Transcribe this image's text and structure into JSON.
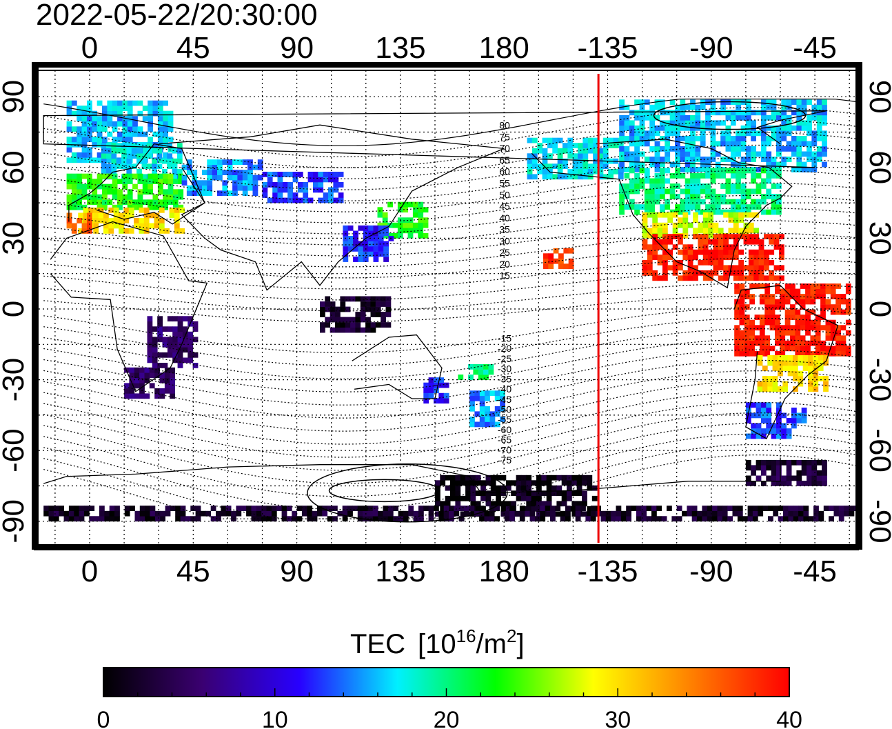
{
  "title": "2022-05-22/20:30:00",
  "x_axis": {
    "top_labels": [
      "0",
      "45",
      "90",
      "135",
      "180",
      "-135",
      "-90",
      "-45"
    ],
    "bottom_labels": [
      "0",
      "45",
      "90",
      "135",
      "180",
      "-135",
      "-90",
      "-45"
    ],
    "lon_values": [
      0,
      45,
      90,
      135,
      180,
      225,
      270,
      315
    ]
  },
  "y_axis": {
    "left_labels": [
      "90",
      "60",
      "30",
      "0",
      "-30",
      "-60",
      "-90"
    ],
    "right_labels": [
      "90",
      "60",
      "30",
      "0",
      "-30",
      "-60",
      "-90"
    ],
    "lat_values": [
      90,
      60,
      30,
      0,
      -30,
      -60,
      -90
    ]
  },
  "contour_labels": {
    "north": [
      "80",
      "75",
      "70",
      "65",
      "60",
      "55",
      "50",
      "45",
      "40",
      "35",
      "30",
      "25",
      "20",
      "15"
    ],
    "south": [
      "-15",
      "-20",
      "-25",
      "-30",
      "-35",
      "-40",
      "-45",
      "-50",
      "-55",
      "-60",
      "-65",
      "-70",
      "-75"
    ],
    "north_lat": [
      80,
      75,
      70,
      65,
      60,
      55,
      50,
      45,
      40,
      35,
      30,
      25,
      20,
      15
    ],
    "south_lat": [
      -15,
      -20,
      -25,
      -30,
      -35,
      -40,
      -45,
      -50,
      -55,
      -60,
      -65,
      -70,
      -75
    ]
  },
  "terminator": {
    "longitude": 221,
    "color": "#ee0000"
  },
  "colorbar": {
    "title": "TEC",
    "unit_open": "[10",
    "unit_exp": "16",
    "unit_mid": "/m",
    "unit_exp2": "2",
    "unit_close": "]",
    "tick_labels": [
      "0",
      "10",
      "20",
      "30",
      "40"
    ],
    "tick_values": [
      0,
      10,
      20,
      30,
      40
    ],
    "range": [
      0,
      40
    ],
    "stops": [
      "#000000",
      "#3a0070",
      "#2800ff",
      "#00f0ff",
      "#00ff00",
      "#ffff00",
      "#ff8000",
      "#ff0000"
    ]
  },
  "tec_regions": [
    {
      "name": "arctic-europe",
      "lon": [
        -10,
        35
      ],
      "lat": [
        62,
        88
      ],
      "tec": 16
    },
    {
      "name": "scandinavia",
      "lon": [
        5,
        40
      ],
      "lat": [
        55,
        70
      ],
      "tec": 17
    },
    {
      "name": "central-europe",
      "lon": [
        -10,
        40
      ],
      "lat": [
        42,
        56
      ],
      "tec": 23
    },
    {
      "name": "mediterranean",
      "lon": [
        -5,
        40
      ],
      "lat": [
        32,
        42
      ],
      "tec": 30
    },
    {
      "name": "iberia",
      "lon": [
        -10,
        0
      ],
      "lat": [
        32,
        40
      ],
      "tec": 36
    },
    {
      "name": "russia",
      "lon": [
        40,
        75
      ],
      "lat": [
        48,
        62
      ],
      "tec": 15
    },
    {
      "name": "siberia",
      "lon": [
        75,
        110
      ],
      "lat": [
        45,
        58
      ],
      "tec": 13
    },
    {
      "name": "japan",
      "lon": [
        125,
        145
      ],
      "lat": [
        30,
        45
      ],
      "tec": 23
    },
    {
      "name": "east-china",
      "lon": [
        110,
        130
      ],
      "lat": [
        20,
        35
      ],
      "tec": 12
    },
    {
      "name": "se-asia",
      "lon": [
        100,
        130
      ],
      "lat": [
        -10,
        5
      ],
      "tec": 2
    },
    {
      "name": "south-africa",
      "lon": [
        15,
        35
      ],
      "lat": [
        -38,
        -25
      ],
      "tec": 5
    },
    {
      "name": "east-africa",
      "lon": [
        25,
        45
      ],
      "lat": [
        -25,
        -5
      ],
      "tec": 5
    },
    {
      "name": "australia-east",
      "lon": [
        145,
        155
      ],
      "lat": [
        -40,
        -30
      ],
      "tec": 12
    },
    {
      "name": "new-zealand",
      "lon": [
        165,
        180
      ],
      "lat": [
        -50,
        -35
      ],
      "tec": 15
    },
    {
      "name": "tasman",
      "lon": [
        160,
        175
      ],
      "lat": [
        -30,
        -25
      ],
      "tec": 20
    },
    {
      "name": "alaska",
      "lon": [
        190,
        230
      ],
      "lat": [
        55,
        72
      ],
      "tec": 17
    },
    {
      "name": "canada",
      "lon": [
        230,
        320
      ],
      "lat": [
        58,
        88
      ],
      "tec": 16
    },
    {
      "name": "north-america",
      "lon": [
        230,
        300
      ],
      "lat": [
        40,
        58
      ],
      "tec": 20
    },
    {
      "name": "us-south",
      "lon": [
        240,
        290
      ],
      "lat": [
        30,
        40
      ],
      "tec": 28
    },
    {
      "name": "mexico-caribbean",
      "lon": [
        240,
        300
      ],
      "lat": [
        12,
        30
      ],
      "tec": 39
    },
    {
      "name": "south-america-north",
      "lon": [
        280,
        330
      ],
      "lat": [
        -20,
        10
      ],
      "tec": 39
    },
    {
      "name": "south-america-mid",
      "lon": [
        290,
        320
      ],
      "lat": [
        -35,
        -20
      ],
      "tec": 30
    },
    {
      "name": "patagonia",
      "lon": [
        285,
        310
      ],
      "lat": [
        -55,
        -40
      ],
      "tec": 13
    },
    {
      "name": "hawaii",
      "lon": [
        197,
        208
      ],
      "lat": [
        17,
        25
      ],
      "tec": 38
    },
    {
      "name": "antarctica-pacific",
      "lon": [
        150,
        220
      ],
      "lat": [
        -88,
        -72
      ],
      "tec": 1
    },
    {
      "name": "antarctica-belt",
      "lon": [
        -20,
        340
      ],
      "lat": [
        -90,
        -84
      ],
      "tec": 2
    },
    {
      "name": "antarctic-peninsula",
      "lon": [
        285,
        320
      ],
      "lat": [
        -75,
        -65
      ],
      "tec": 3
    }
  ]
}
